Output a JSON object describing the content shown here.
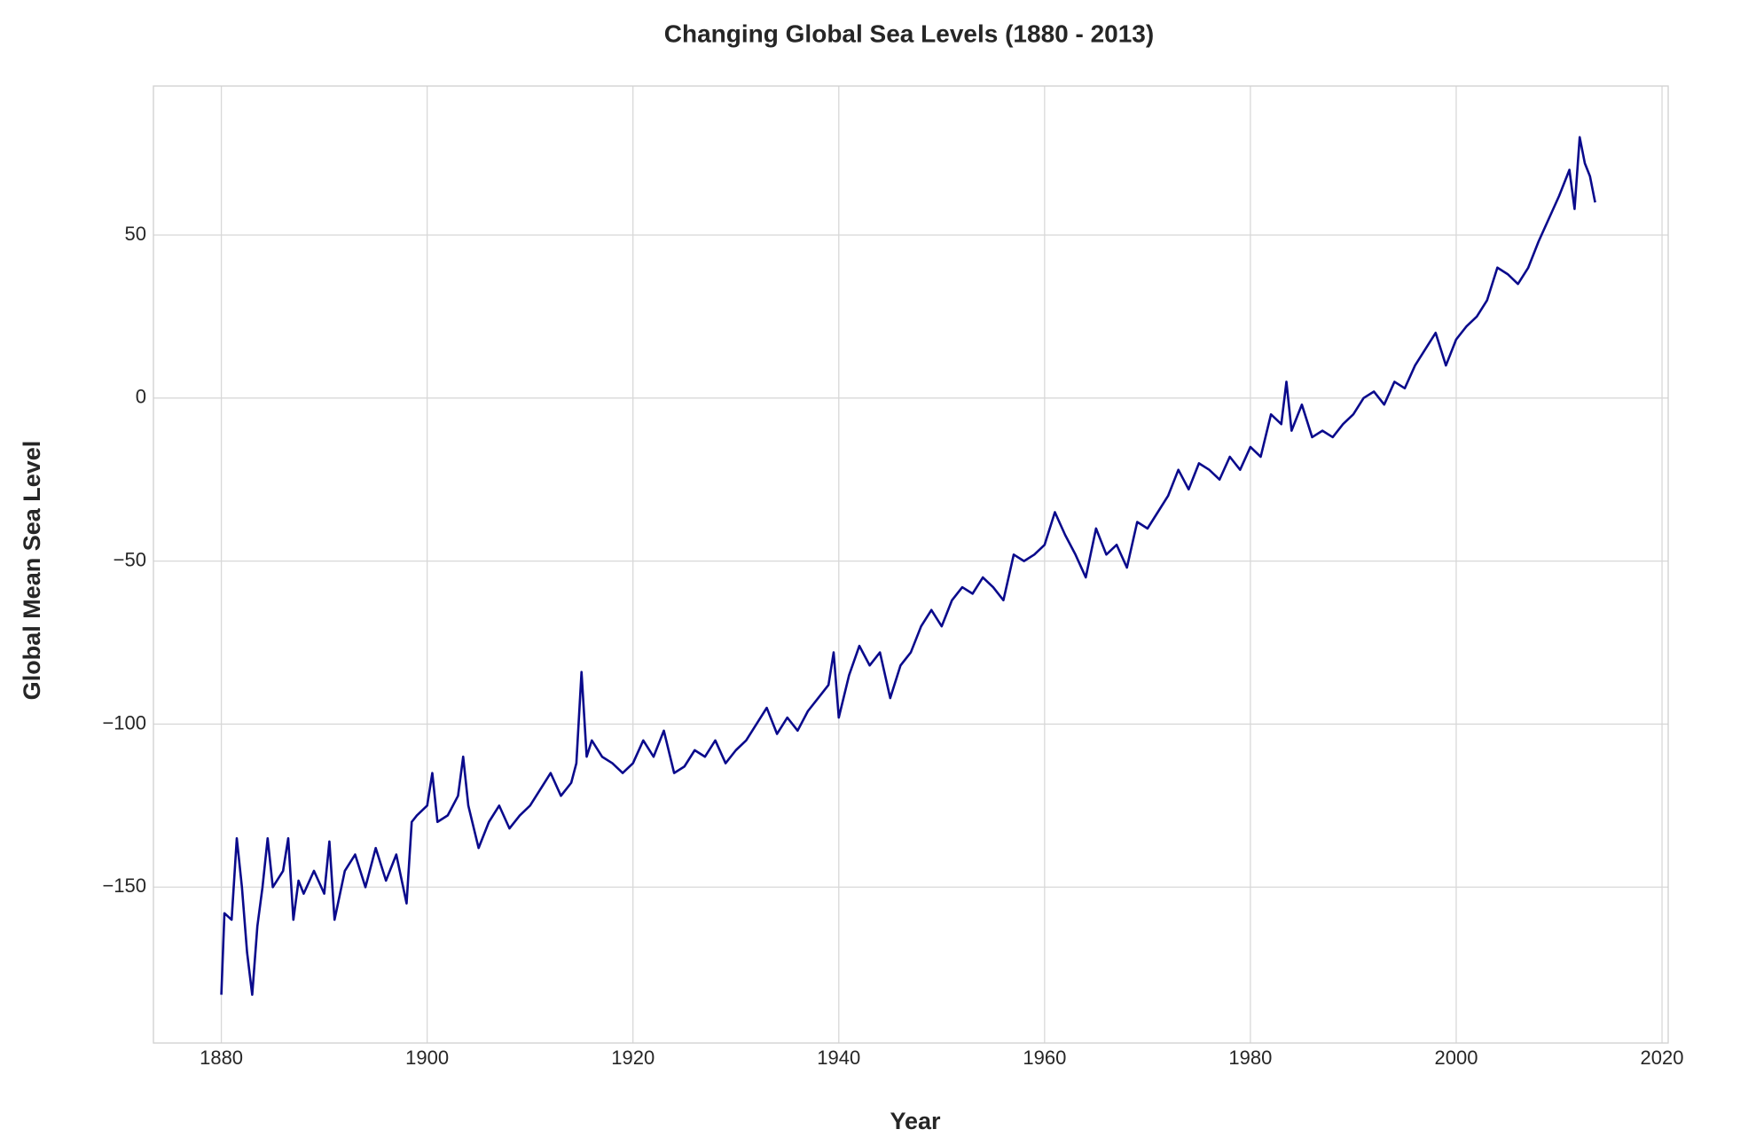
{
  "chart_data": {
    "type": "line",
    "title": "Changing Global Sea Levels (1880 - 2013)",
    "x_label": "Year",
    "y_label": "Global Mean Sea Level",
    "color": "#0a0a8c",
    "grid": true,
    "xlim": [
      1873.4,
      2020.6
    ],
    "ylim": [
      -197.8,
      95.7
    ],
    "xticks": [
      1880,
      1900,
      1920,
      1940,
      1960,
      1980,
      2000,
      2020
    ],
    "yticks": [
      {
        "value": -150,
        "label": "−150"
      },
      {
        "value": -100,
        "label": "−100"
      },
      {
        "value": -50,
        "label": "−50"
      },
      0,
      50
    ],
    "x": [
      1880,
      1880.3,
      1881,
      1881.5,
      1882,
      1882.5,
      1883,
      1883.5,
      1884,
      1884.5,
      1885,
      1886,
      1886.5,
      1887,
      1887.5,
      1888,
      1889,
      1890,
      1890.5,
      1891,
      1892,
      1893,
      1894,
      1895,
      1896,
      1897,
      1898,
      1898.5,
      1899,
      1900,
      1900.5,
      1901,
      1902,
      1903,
      1903.5,
      1904,
      1905,
      1906,
      1907,
      1908,
      1909,
      1910,
      1911,
      1912,
      1913,
      1914,
      1914.5,
      1915,
      1915.5,
      1916,
      1917,
      1918,
      1919,
      1920,
      1921,
      1922,
      1923,
      1924,
      1925,
      1926,
      1927,
      1928,
      1929,
      1930,
      1931,
      1932,
      1933,
      1934,
      1935,
      1936,
      1937,
      1938,
      1939,
      1939.5,
      1940,
      1941,
      1942,
      1943,
      1944,
      1945,
      1946,
      1947,
      1948,
      1949,
      1950,
      1951,
      1952,
      1953,
      1954,
      1955,
      1956,
      1957,
      1958,
      1959,
      1960,
      1961,
      1962,
      1963,
      1964,
      1965,
      1966,
      1967,
      1968,
      1969,
      1970,
      1971,
      1972,
      1973,
      1974,
      1975,
      1976,
      1977,
      1978,
      1979,
      1980,
      1981,
      1982,
      1983,
      1983.5,
      1984,
      1985,
      1986,
      1987,
      1988,
      1989,
      1990,
      1991,
      1992,
      1993,
      1994,
      1995,
      1996,
      1997,
      1998,
      1999,
      2000,
      2001,
      2002,
      2003,
      2004,
      2005,
      2006,
      2007,
      2008,
      2009,
      2010,
      2011,
      2011.5,
      2012,
      2012.5,
      2013,
      2013.5
    ],
    "values": [
      -183,
      -158,
      -160,
      -135,
      -150,
      -170,
      -183,
      -162,
      -150,
      -135,
      -150,
      -145,
      -135,
      -160,
      -148,
      -152,
      -145,
      -152,
      -136,
      -160,
      -145,
      -140,
      -150,
      -138,
      -148,
      -140,
      -155,
      -130,
      -128,
      -125,
      -115,
      -130,
      -128,
      -122,
      -110,
      -125,
      -138,
      -130,
      -125,
      -132,
      -128,
      -125,
      -120,
      -115,
      -122,
      -118,
      -112,
      -84,
      -110,
      -105,
      -110,
      -112,
      -115,
      -112,
      -105,
      -110,
      -102,
      -115,
      -113,
      -108,
      -110,
      -105,
      -112,
      -108,
      -105,
      -100,
      -95,
      -103,
      -98,
      -102,
      -96,
      -92,
      -88,
      -78,
      -98,
      -85,
      -76,
      -82,
      -78,
      -92,
      -82,
      -78,
      -70,
      -65,
      -70,
      -62,
      -58,
      -60,
      -55,
      -58,
      -62,
      -48,
      -50,
      -48,
      -45,
      -35,
      -42,
      -48,
      -55,
      -40,
      -48,
      -45,
      -52,
      -38,
      -40,
      -35,
      -30,
      -22,
      -28,
      -20,
      -22,
      -25,
      -18,
      -22,
      -15,
      -18,
      -5,
      -8,
      5,
      -10,
      -2,
      -12,
      -10,
      -12,
      -8,
      -5,
      0,
      2,
      -2,
      5,
      3,
      10,
      15,
      20,
      10,
      18,
      22,
      25,
      30,
      40,
      38,
      35,
      40,
      48,
      55,
      62,
      70,
      58,
      80,
      72,
      68,
      60
    ]
  }
}
